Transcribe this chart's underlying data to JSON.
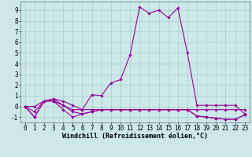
{
  "x": [
    0,
    1,
    2,
    3,
    4,
    5,
    6,
    7,
    8,
    9,
    10,
    11,
    12,
    13,
    14,
    15,
    16,
    17,
    18,
    19,
    20,
    21,
    22,
    23
  ],
  "series": [
    [
      0.0,
      -1.0,
      0.5,
      0.7,
      0.5,
      0.1,
      -0.3,
      1.1,
      1.0,
      2.2,
      2.5,
      4.8,
      9.3,
      8.7,
      9.0,
      8.3,
      9.2,
      5.0,
      0.1,
      0.1,
      0.1,
      0.1,
      0.1,
      -0.7
    ],
    [
      0.0,
      -1.0,
      0.5,
      0.7,
      0.1,
      -0.5,
      -0.7,
      -0.5,
      -0.3,
      -0.3,
      -0.3,
      -0.3,
      -0.3,
      -0.3,
      -0.3,
      -0.3,
      -0.3,
      -0.3,
      -0.9,
      -1.0,
      -1.1,
      -1.2,
      -1.2,
      -0.8
    ],
    [
      0.0,
      -0.5,
      0.5,
      0.5,
      -0.3,
      -1.0,
      -0.7,
      -0.5,
      -0.3,
      -0.3,
      -0.3,
      -0.3,
      -0.3,
      -0.3,
      -0.3,
      -0.3,
      -0.3,
      -0.3,
      -0.9,
      -1.0,
      -1.1,
      -1.2,
      -1.2,
      -0.8
    ],
    [
      0.0,
      0.0,
      0.5,
      0.5,
      0.1,
      -0.3,
      -0.3,
      -0.3,
      -0.3,
      -0.3,
      -0.3,
      -0.3,
      -0.3,
      -0.3,
      -0.3,
      -0.3,
      -0.3,
      -0.3,
      -0.3,
      -0.3,
      -0.3,
      -0.3,
      -0.3,
      -0.3
    ]
  ],
  "line_color": "#990099",
  "bg_color": "#cce8e8",
  "grid_color": "#aacccc",
  "xlabel": "Windchill (Refroidissement éolien,°C)",
  "xlim": [
    -0.5,
    23.5
  ],
  "ylim": [
    -1.5,
    9.8
  ],
  "yticks": [
    -1,
    0,
    1,
    2,
    3,
    4,
    5,
    6,
    7,
    8,
    9
  ],
  "xticks": [
    0,
    1,
    2,
    3,
    4,
    5,
    6,
    7,
    8,
    9,
    10,
    11,
    12,
    13,
    14,
    15,
    16,
    17,
    18,
    19,
    20,
    21,
    22,
    23
  ],
  "axis_fontsize": 6,
  "tick_fontsize": 5.5,
  "marker_size": 1.8,
  "line_width": 0.8
}
